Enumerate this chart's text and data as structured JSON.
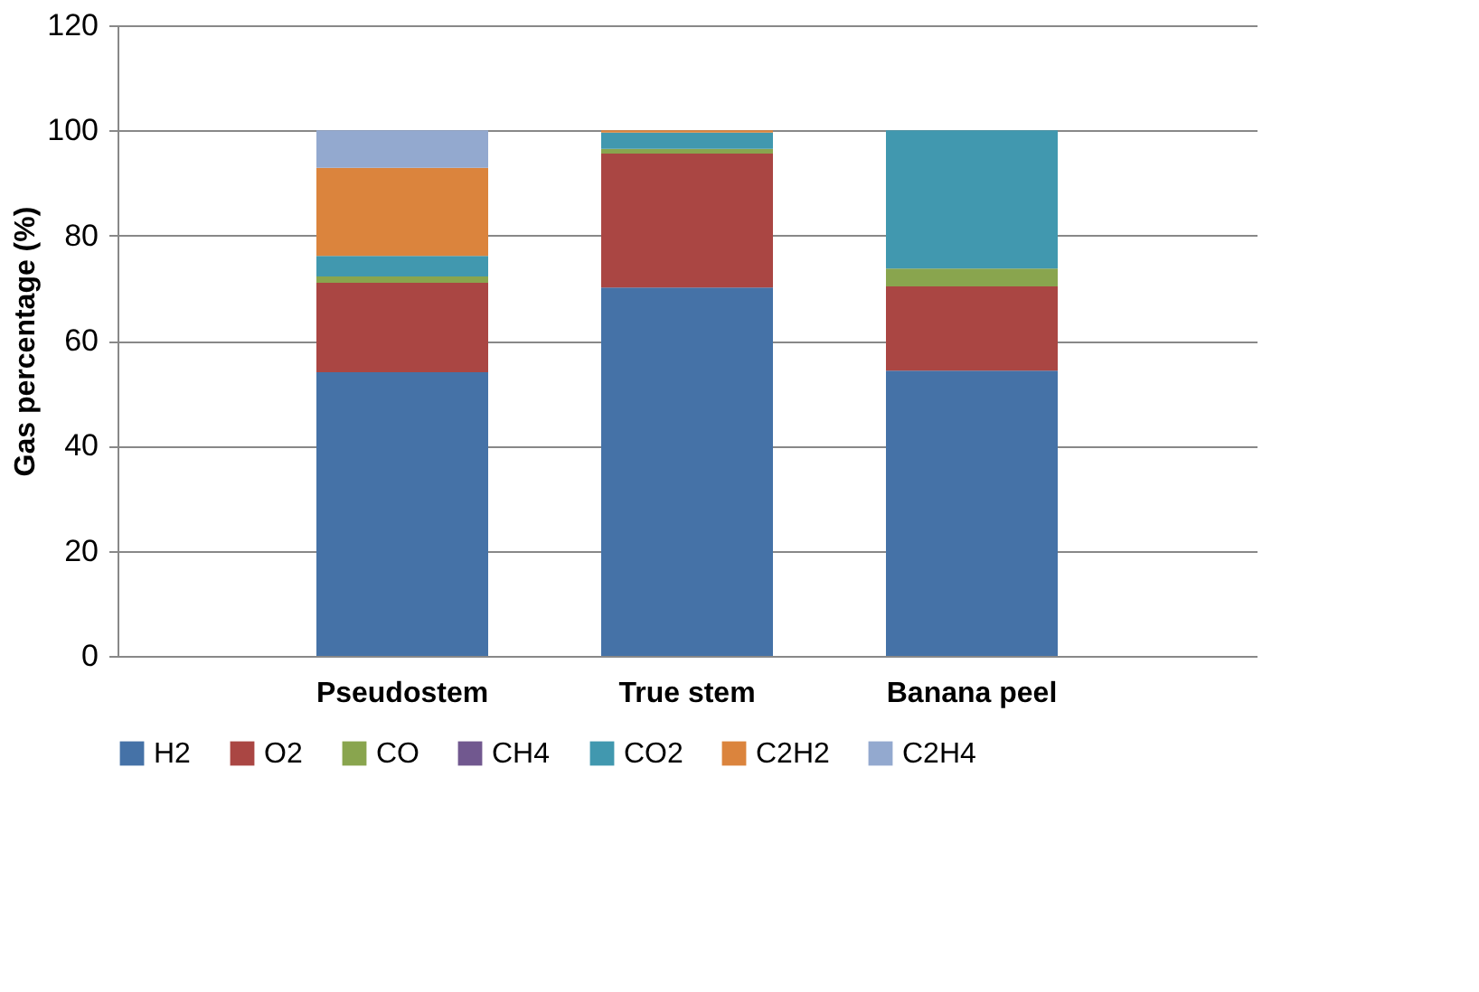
{
  "chart_data": {
    "type": "bar",
    "stacked": true,
    "ylabel": "Gas percentage (%)",
    "categories": [
      "Pseudostem",
      "True stem",
      "Banana peel"
    ],
    "series": [
      {
        "name": "H2",
        "color": "#4572a7",
        "values": [
          54.0,
          70.1,
          54.3
        ]
      },
      {
        "name": "O2",
        "color": "#aa4643",
        "values": [
          17.0,
          25.5,
          16.0
        ]
      },
      {
        "name": "CO",
        "color": "#89a54e",
        "values": [
          1.2,
          0.9,
          3.4
        ]
      },
      {
        "name": "CH4",
        "color": "#71588f",
        "values": [
          0,
          0,
          0
        ]
      },
      {
        "name": "CO2",
        "color": "#4198af",
        "values": [
          3.9,
          3.1,
          26.3
        ]
      },
      {
        "name": "C2H2",
        "color": "#db843d",
        "values": [
          16.8,
          0.4,
          0
        ]
      },
      {
        "name": "C2H4",
        "color": "#93a9cf",
        "values": [
          7.1,
          0,
          0
        ]
      }
    ],
    "ylim": [
      0,
      120
    ],
    "yticks": [
      0,
      20,
      40,
      60,
      80,
      100,
      120
    ],
    "grid": "y",
    "legend": "bottom"
  }
}
